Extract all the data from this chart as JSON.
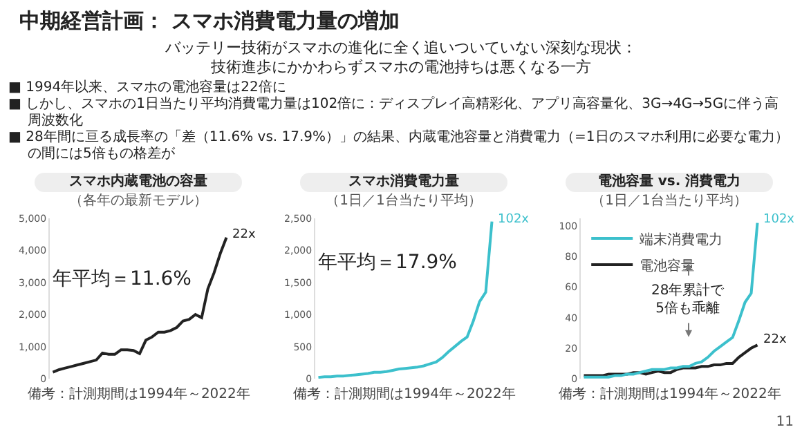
{
  "chart_data": [
    {
      "type": "other",
      "title": "中期経営計画： スマホ消費電力量の増加",
      "subtitle": "バッテリー技術がスマホの進化に全く追いついていない深刻な現状：技術進歩にかかわらずスマホの電池持ちは悪くなる一方",
      "annotations": [
        "■ 1994年以来、スマホの電池容量は22倍に",
        "■ しかし、スマホの1日当たり平均消費電力量は102倍に：ディスプレイ高精彩化、アプリ高容量化、3G→4G→5Gに伴う高周波数化",
        "■ 28年間に亘る成長率の「差（11.6% vs. 17.9%）」の結果、内蔵電池容量と消費電力（=1日のスマホ利用に必要な電力）の間には5倍もの格差が",
        "11"
      ]
    },
    {
      "type": "line",
      "title": "スマホ内蔵電池の容量",
      "subtitle": "（各年の最新モデル）",
      "categories": [
        null,
        null,
        null,
        null,
        null,
        null,
        null,
        null,
        null,
        null,
        null,
        null,
        null,
        null,
        null,
        null,
        null,
        null,
        null,
        null,
        null,
        null,
        null,
        null,
        null,
        null,
        null,
        null,
        null
      ],
      "series": [
        {
          "color": "#222222",
          "values": [
            200,
            280,
            330,
            380,
            430,
            480,
            530,
            580,
            800,
            760,
            760,
            900,
            900,
            880,
            780,
            1200,
            1300,
            1450,
            1450,
            1500,
            1600,
            1800,
            1850,
            2000,
            1900,
            2800,
            3300,
            3900,
            4400
          ]
        }
      ],
      "ylim": [
        0,
        5000
      ],
      "yticks": [
        0,
        {
          "value": 1000,
          "label": "1,000"
        },
        {
          "value": 2000,
          "label": "2,000"
        },
        {
          "value": 3000,
          "label": "3,000"
        },
        {
          "value": 4000,
          "label": "4,000"
        },
        {
          "value": 5000,
          "label": "5,000"
        }
      ],
      "grid": false,
      "tick_labels": "y",
      "annotations": [
        "22x",
        "年平均＝11.6%",
        "備考：計測期間は1994年～2022年"
      ]
    },
    {
      "type": "line",
      "title": "スマホ消費電力量",
      "subtitle": "（1日／1台当たり平均）",
      "categories": [
        null,
        null,
        null,
        null,
        null,
        null,
        null,
        null,
        null,
        null,
        null,
        null,
        null,
        null,
        null,
        null,
        null,
        null,
        null,
        null,
        null,
        null,
        null,
        null,
        null,
        null,
        null,
        null,
        null
      ],
      "series": [
        {
          "color": "#3cc0cc",
          "values": [
            20,
            30,
            30,
            40,
            40,
            50,
            60,
            70,
            80,
            100,
            100,
            110,
            130,
            150,
            160,
            170,
            180,
            200,
            230,
            260,
            330,
            420,
            500,
            580,
            650,
            900,
            1200,
            1350,
            2450
          ]
        }
      ],
      "ylim": [
        0,
        2500
      ],
      "yticks": [
        0,
        500,
        {
          "value": 1000,
          "label": "1,000"
        },
        {
          "value": 1500,
          "label": "1,500"
        },
        {
          "value": 2000,
          "label": "2,000"
        },
        {
          "value": 2500,
          "label": "2,500"
        }
      ],
      "grid": false,
      "tick_labels": "y",
      "annotations": [
        "102x",
        "年平均＝17.9%",
        "備考：計測期間は1994年～2022年"
      ]
    },
    {
      "type": "line",
      "title": "電池容量 vs. 消費電力",
      "subtitle": "（1日／1台当たり平均）",
      "categories": [
        null,
        null,
        null,
        null,
        null,
        null,
        null,
        null,
        null,
        null,
        null,
        null,
        null,
        null,
        null,
        null,
        null,
        null,
        null,
        null,
        null,
        null,
        null,
        null,
        null,
        null,
        null,
        null,
        null
      ],
      "series": [
        {
          "name": "端末消費電力",
          "color": "#3cc0cc",
          "values": [
            1,
            1,
            1,
            1,
            1,
            2,
            2,
            3,
            3,
            4,
            5,
            6,
            6,
            6,
            7,
            7,
            8,
            8,
            10,
            11,
            14,
            18,
            21,
            24,
            27,
            38,
            50,
            56,
            102
          ]
        },
        {
          "name": "電池容量",
          "color": "#222222",
          "values": [
            2,
            2,
            2,
            2,
            3,
            3,
            3,
            3,
            4,
            4,
            3,
            4,
            5,
            4,
            4,
            6,
            7,
            7,
            7,
            8,
            8,
            9,
            9,
            10,
            10,
            14,
            17,
            20,
            22
          ]
        }
      ],
      "ylim": [
        0,
        105
      ],
      "yticks": [
        0,
        20,
        40,
        60,
        80,
        100
      ],
      "grid": false,
      "tick_labels": "y",
      "legend": "top left",
      "annotations": [
        "102x",
        "22x",
        "28年累計で\n5倍も乖離",
        "備考：計測期間は1994年～2022年"
      ]
    }
  ]
}
